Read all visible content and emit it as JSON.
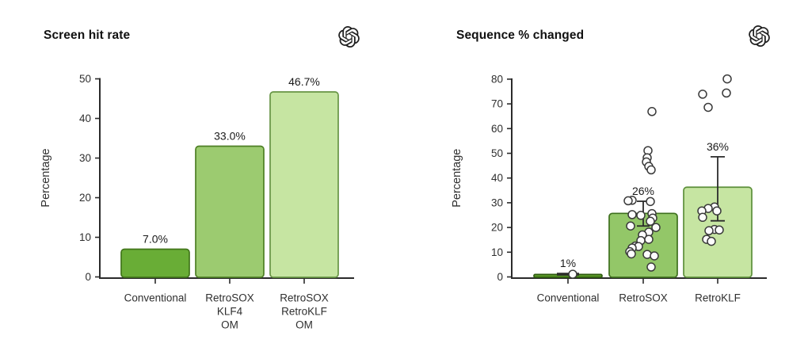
{
  "figure": {
    "background": "#ffffff",
    "logo_icon": "openai-logo",
    "logo_color": "#1f1f1f"
  },
  "chart_data": [
    {
      "type": "bar",
      "title": "Screen hit rate",
      "ylabel": "Percentage",
      "ylim": [
        0,
        50
      ],
      "yticks": [
        0,
        10,
        20,
        30,
        40,
        50
      ],
      "grid": false,
      "categories": [
        "Conventional",
        "RetroSOX\nKLF4\nOM",
        "RetroSOX\nRetroKLF\nOM"
      ],
      "values": [
        7.0,
        33.0,
        46.7
      ],
      "bar_labels": [
        "7.0%",
        "33.0%",
        "46.7%"
      ],
      "bar_fills": [
        "#69ad36",
        "#9ccb70",
        "#c6e5a2"
      ],
      "bar_strokes": [
        "#41751a",
        "#4d7f24",
        "#679544"
      ]
    },
    {
      "type": "bar",
      "title": "Sequence % changed",
      "ylabel": "Percentage",
      "ylim": [
        0,
        80
      ],
      "yticks": [
        0,
        10,
        20,
        30,
        40,
        50,
        60,
        70,
        80
      ],
      "grid": false,
      "categories": [
        "Conventional",
        "RetroSOX",
        "RetroKLF"
      ],
      "values": [
        1.0,
        25.7,
        36.3
      ],
      "bar_labels": [
        "1%",
        "26%",
        "36%"
      ],
      "bar_fills": [
        "#5d9c28",
        "#93c768",
        "#c6e5a2"
      ],
      "bar_strokes": [
        "#2f5c0f",
        "#3e701d",
        "#5c8f3a"
      ],
      "error_bars": [
        {
          "low": 0.8,
          "high": 1.4,
          "cap": 14
        },
        {
          "low": 20.6,
          "high": 30.6,
          "cap": 8
        },
        {
          "low": 22.7,
          "high": 48.6,
          "cap": 9
        }
      ],
      "scatter_note": "points are [value, x-jitter-offset-px]",
      "scatter": [
        [
          [
            1.1,
            6
          ]
        ],
        [
          [
            66.9,
            11
          ],
          [
            51.1,
            6
          ],
          [
            48.2,
            5
          ],
          [
            46.5,
            4
          ],
          [
            44.7,
            7
          ],
          [
            43.3,
            10
          ],
          [
            31.0,
            -14
          ],
          [
            30.8,
            -19
          ],
          [
            30.5,
            9
          ],
          [
            25.6,
            11
          ],
          [
            25.2,
            -14
          ],
          [
            24.9,
            -3
          ],
          [
            23.8,
            12
          ],
          [
            22.5,
            9
          ],
          [
            20.6,
            -16
          ],
          [
            20.0,
            16
          ],
          [
            18.1,
            7
          ],
          [
            17.0,
            -1
          ],
          [
            15.2,
            7
          ],
          [
            14.7,
            -3
          ],
          [
            12.5,
            -10
          ],
          [
            12.3,
            -6
          ],
          [
            11.7,
            -14
          ],
          [
            10.2,
            -17
          ],
          [
            9.3,
            -15
          ],
          [
            9.1,
            5
          ],
          [
            8.5,
            14
          ],
          [
            4.0,
            10
          ]
        ],
        [
          [
            80.1,
            12
          ],
          [
            74.4,
            11
          ],
          [
            73.9,
            -19
          ],
          [
            68.6,
            -12
          ],
          [
            28.3,
            -4
          ],
          [
            27.7,
            -12
          ],
          [
            26.7,
            -1
          ],
          [
            26.7,
            -20
          ],
          [
            24.1,
            -19
          ],
          [
            19.2,
            -4
          ],
          [
            19.0,
            2
          ],
          [
            18.7,
            -11
          ],
          [
            15.2,
            -14
          ],
          [
            14.4,
            -8
          ]
        ]
      ],
      "point_style": {
        "fill": "#fdfdfd",
        "stroke": "#3a3a3a"
      }
    }
  ]
}
